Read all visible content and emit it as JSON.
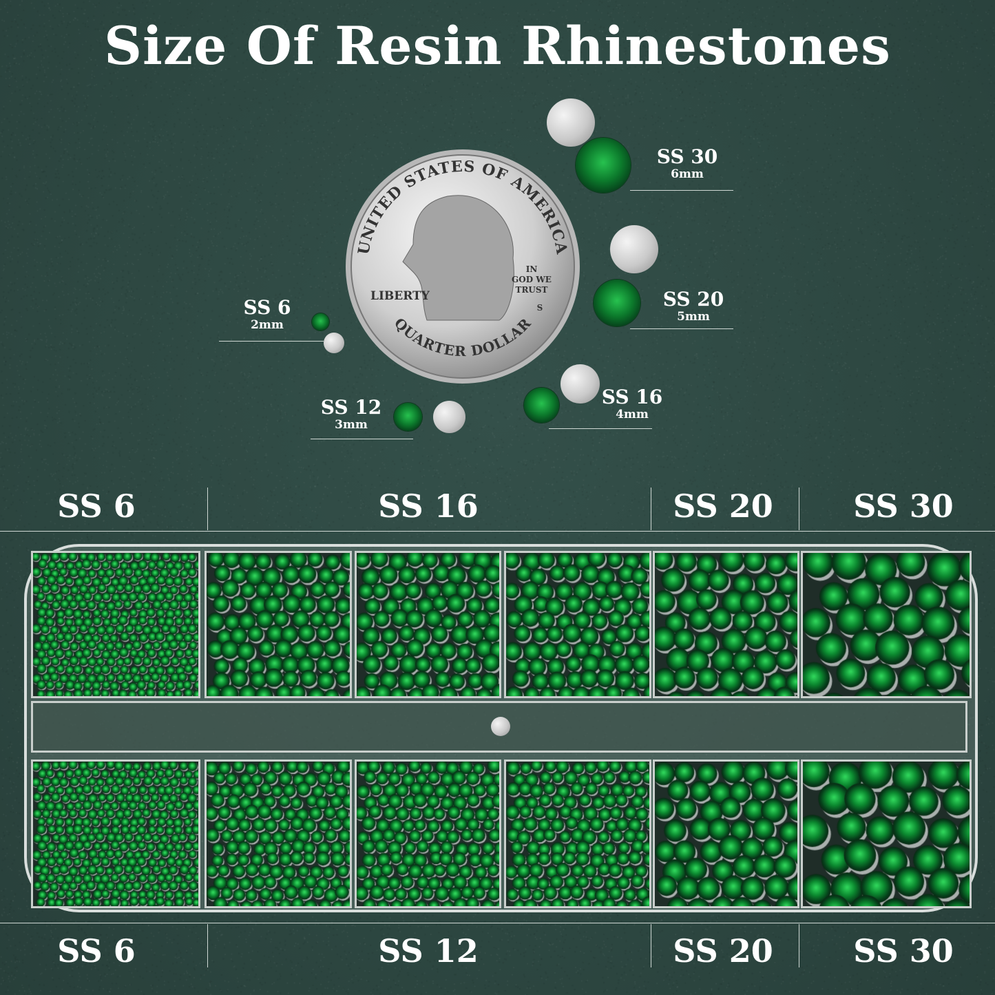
{
  "title": "Size Of Resin Rhinestones",
  "coin": {
    "top_text": "UNITED STATES OF AMERICA",
    "bottom_text": "QUARTER DOLLAR",
    "liberty": "LIBERTY",
    "motto_1": "IN",
    "motto_2": "GOD WE",
    "motto_3": "TRUST",
    "mint": "S"
  },
  "size_labels": [
    {
      "name": "SS 30",
      "mm": "6mm"
    },
    {
      "name": "SS 20",
      "mm": "5mm"
    },
    {
      "name": "SS 6",
      "mm": "2mm"
    },
    {
      "name": "SS 12",
      "mm": "3mm"
    },
    {
      "name": "SS 16",
      "mm": "4mm"
    }
  ],
  "top_row_labels": [
    "SS 6",
    "SS 16",
    "SS 20",
    "SS 30"
  ],
  "bottom_row_labels": [
    "SS 6",
    "SS 12",
    "SS 20",
    "SS 30"
  ],
  "colors": {
    "background": "#2d4741",
    "stone": "#0c7a2c",
    "silver": "#c9c9c9"
  }
}
